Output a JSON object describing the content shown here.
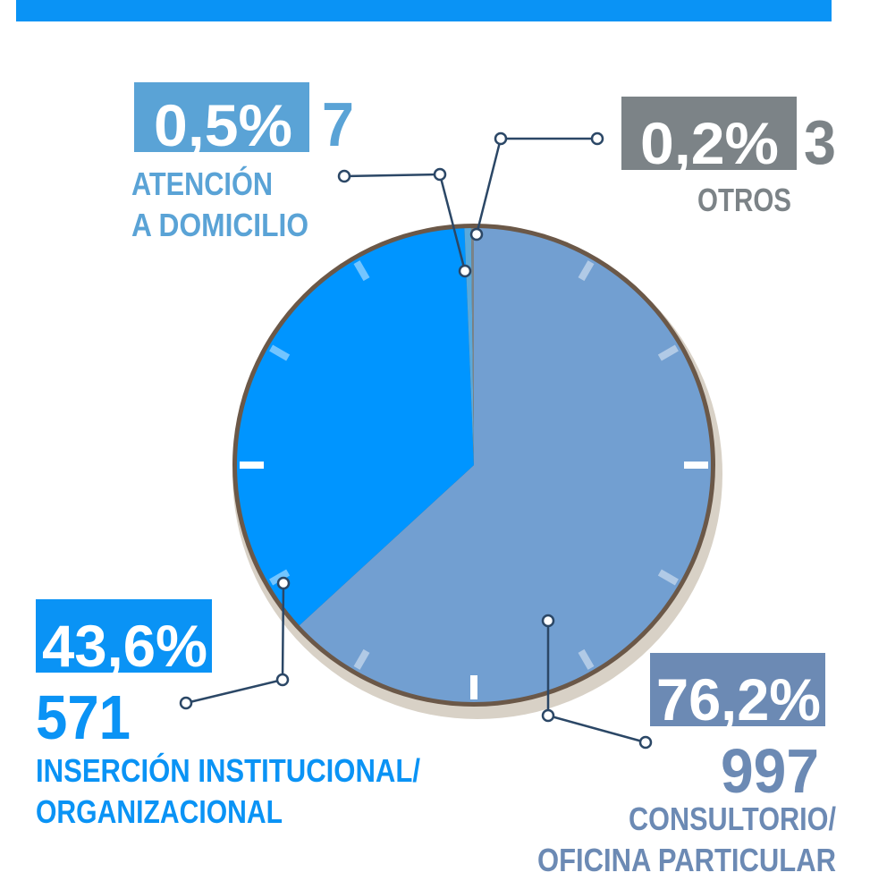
{
  "chart_data": {
    "type": "pie",
    "categories": [
      [
        "CONSULTORIO/",
        "OFICINA PARTICULAR"
      ],
      [
        "INSERCIÓN INSTITUCIONAL/",
        "ORGANIZACIONAL"
      ],
      [
        "ATENCIÓN",
        "A DOMICILIO"
      ],
      [
        "OTROS"
      ]
    ],
    "values": [
      997,
      571,
      7,
      3
    ],
    "percents": [
      76.2,
      43.6,
      0.5,
      0.2
    ],
    "percent_labels": [
      "76,2%",
      "43,6%",
      "0,5%",
      "0,2%"
    ],
    "colors": [
      "#729fd1",
      "#0095ff",
      "#5aa9db",
      "#7b8388"
    ],
    "label_colors": [
      "#6c8ab4",
      "#0a93f5",
      "#5aa3d6",
      "#7c8387"
    ]
  }
}
